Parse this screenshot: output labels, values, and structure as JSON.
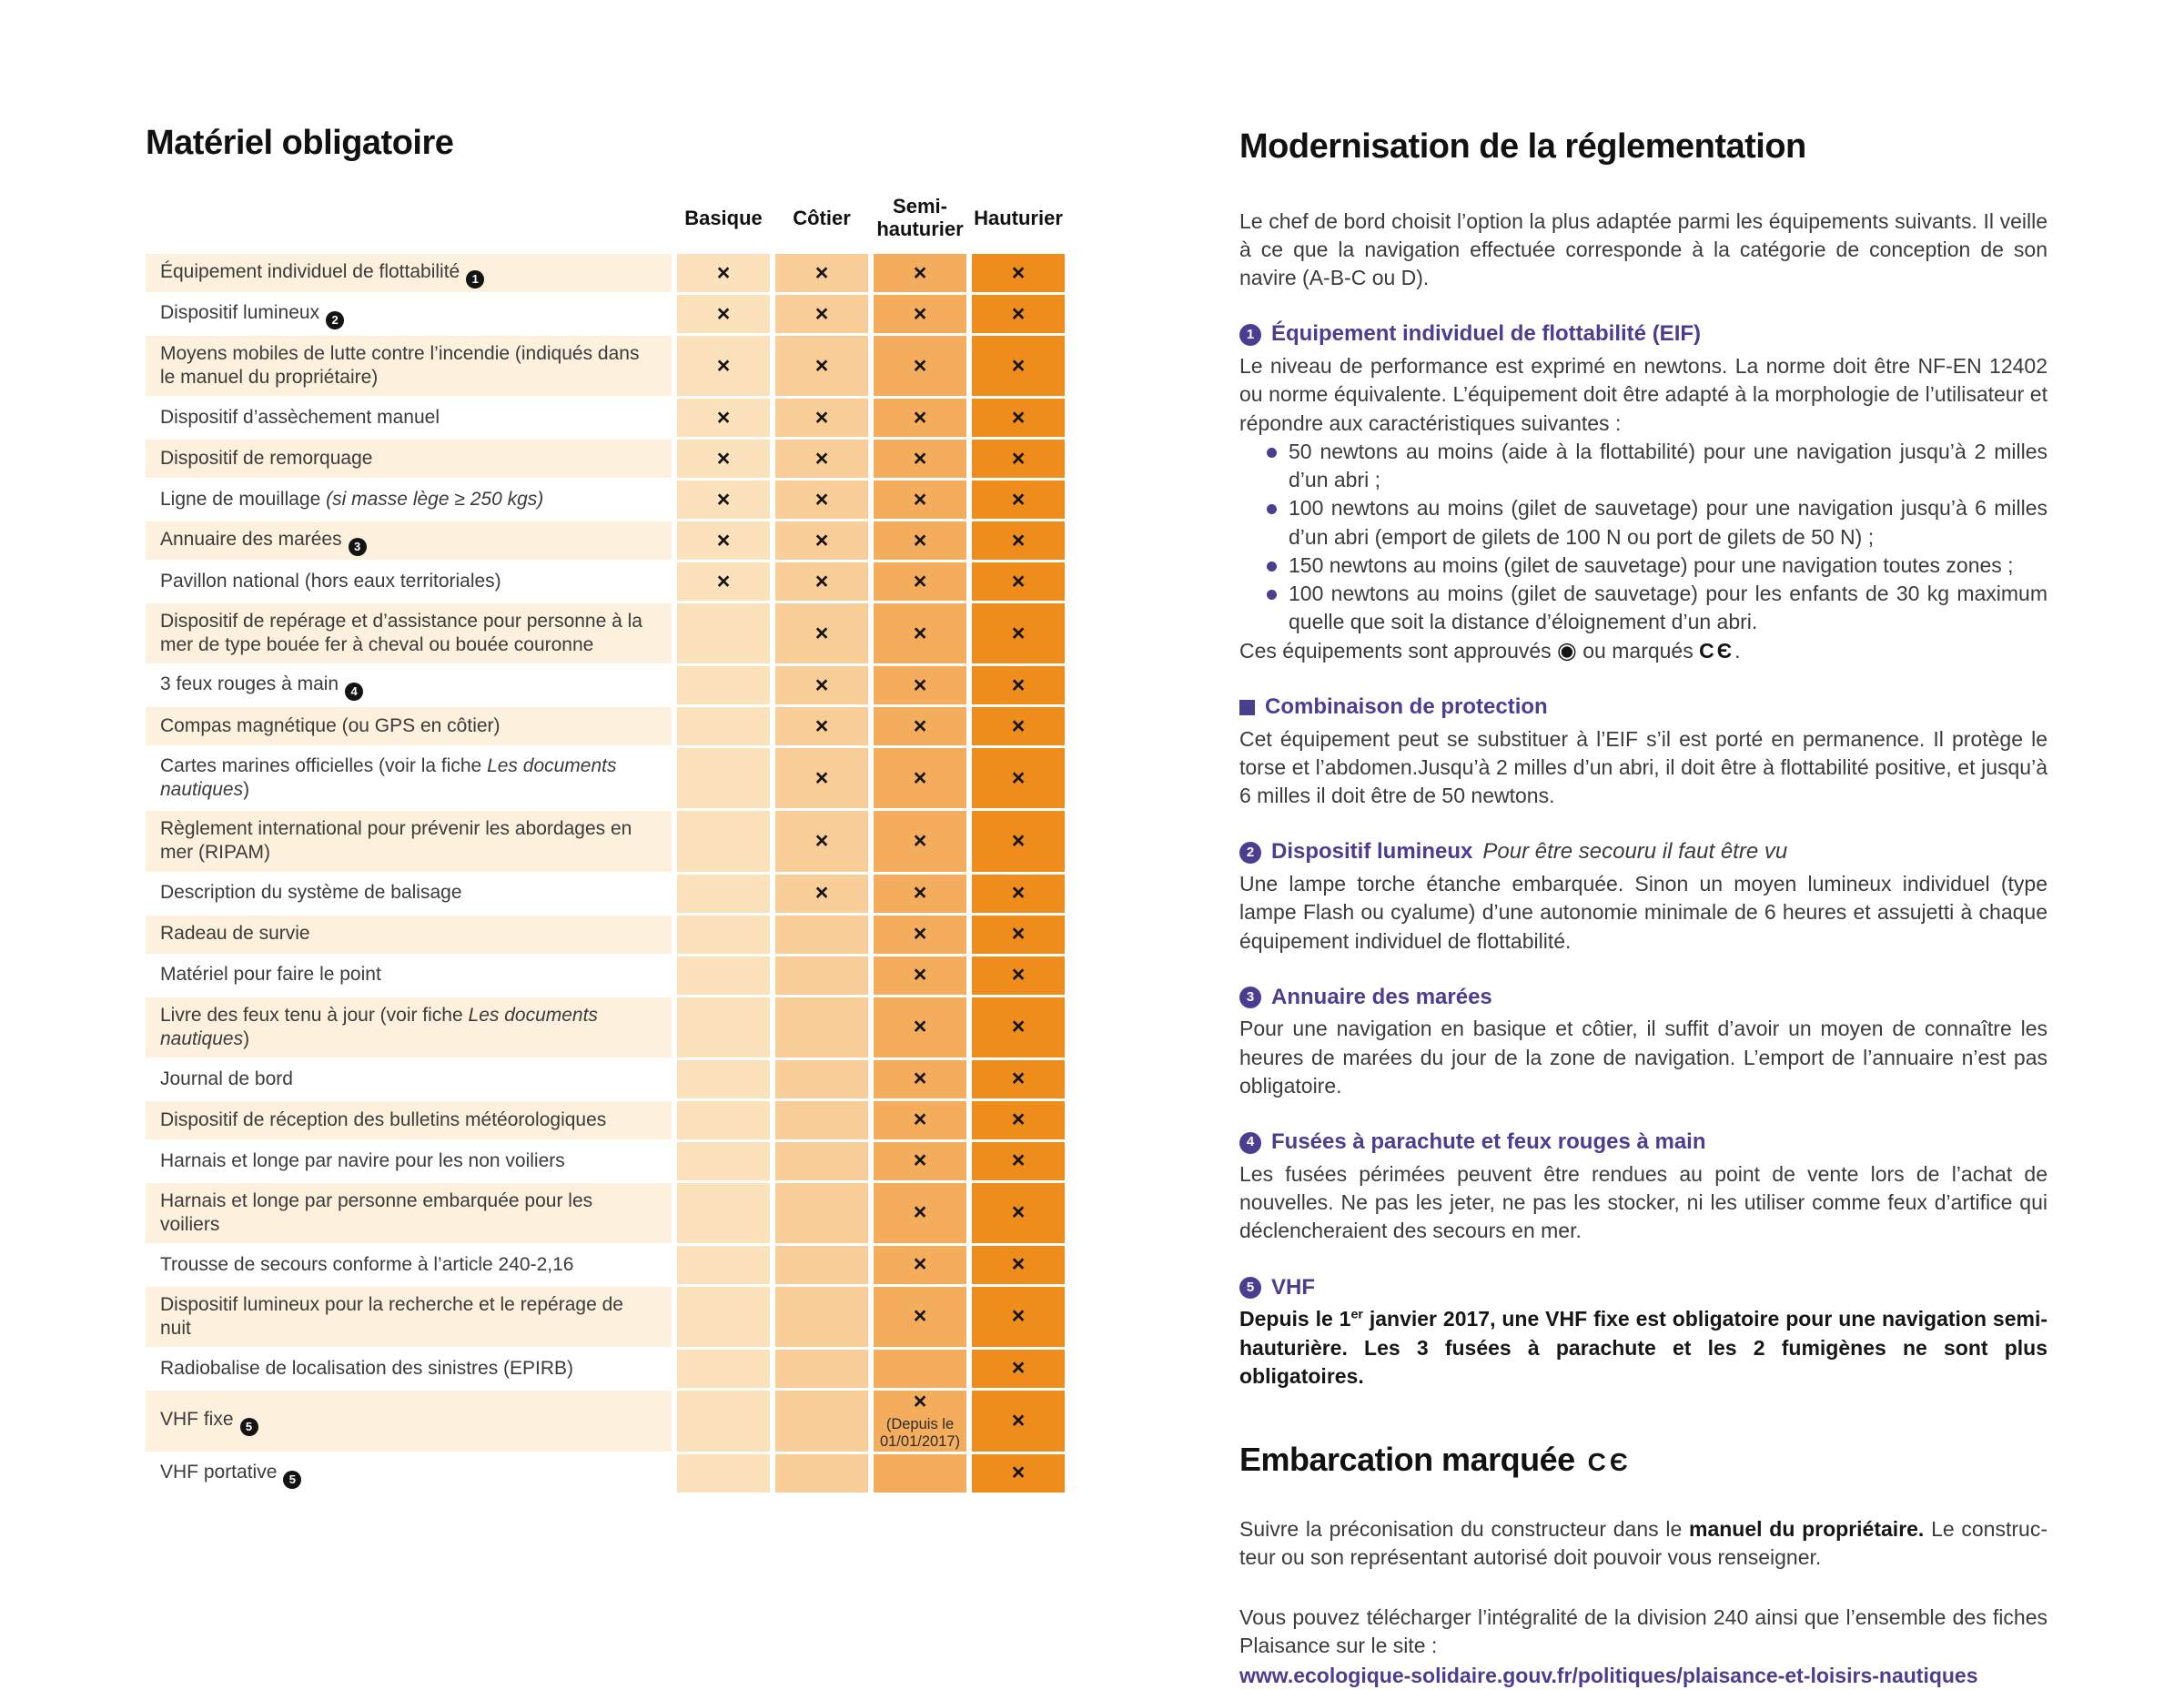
{
  "icons": {
    "wheel_mark": "◉",
    "ce_mark": "CЄ"
  },
  "colors": {
    "accent_purple": "#4a3e91",
    "col_basique": "#fbe2bd",
    "col_cotier": "#f9cd97",
    "col_semi": "#f4ad5d",
    "col_hauturier": "#ee8c1c",
    "row_shade": "#fdf0dc"
  },
  "left": {
    "title": "Matériel obligatoire",
    "table": {
      "columns": [
        "Basique",
        "Côtier",
        "Semi-\nhauturier",
        "Hauturier"
      ],
      "mark": "×",
      "rows": [
        {
          "segments": [
            {
              "t": "Équipement individuel de flottabilité",
              "i": false
            }
          ],
          "badge": "1",
          "marks": [
            1,
            1,
            1,
            1
          ]
        },
        {
          "segments": [
            {
              "t": "Dispositif lumineux",
              "i": false
            }
          ],
          "badge": "2",
          "marks": [
            1,
            1,
            1,
            1
          ]
        },
        {
          "segments": [
            {
              "t": "Moyens mobiles de lutte contre l’incendie (indiqués dans le manuel du propriétaire)",
              "i": false
            }
          ],
          "marks": [
            1,
            1,
            1,
            1
          ]
        },
        {
          "segments": [
            {
              "t": "Dispositif d’assèchement manuel",
              "i": false
            }
          ],
          "marks": [
            1,
            1,
            1,
            1
          ]
        },
        {
          "segments": [
            {
              "t": "Dispositif de remorquage",
              "i": false
            }
          ],
          "marks": [
            1,
            1,
            1,
            1
          ]
        },
        {
          "segments": [
            {
              "t": "Ligne de mouillage ",
              "i": false
            },
            {
              "t": "(si masse lège ≥ 250 kgs)",
              "i": true
            }
          ],
          "marks": [
            1,
            1,
            1,
            1
          ]
        },
        {
          "segments": [
            {
              "t": "Annuaire des marées",
              "i": false
            }
          ],
          "badge": "3",
          "marks": [
            1,
            1,
            1,
            1
          ]
        },
        {
          "segments": [
            {
              "t": "Pavillon national (hors eaux territoriales)",
              "i": false
            }
          ],
          "marks": [
            1,
            1,
            1,
            1
          ]
        },
        {
          "segments": [
            {
              "t": "Dispositif de repérage et d’assistance pour personne à la mer de type bouée fer à cheval ou bouée couronne",
              "i": false
            }
          ],
          "marks": [
            0,
            1,
            1,
            1
          ]
        },
        {
          "segments": [
            {
              "t": "3 feux rouges à main",
              "i": false
            }
          ],
          "badge": "4",
          "marks": [
            0,
            1,
            1,
            1
          ]
        },
        {
          "segments": [
            {
              "t": "Compas magnétique (ou GPS en côtier)",
              "i": false
            }
          ],
          "marks": [
            0,
            1,
            1,
            1
          ]
        },
        {
          "segments": [
            {
              "t": "Cartes marines officielles (voir la fiche ",
              "i": false
            },
            {
              "t": "Les documents nautiques",
              "i": true
            },
            {
              "t": ")",
              "i": false
            }
          ],
          "marks": [
            0,
            1,
            1,
            1
          ]
        },
        {
          "segments": [
            {
              "t": "Règlement international pour prévenir les abordages en mer (RIPAM)",
              "i": false
            }
          ],
          "marks": [
            0,
            1,
            1,
            1
          ]
        },
        {
          "segments": [
            {
              "t": "Description du système de balisage",
              "i": false
            }
          ],
          "marks": [
            0,
            1,
            1,
            1
          ]
        },
        {
          "segments": [
            {
              "t": "Radeau de survie",
              "i": false
            }
          ],
          "marks": [
            0,
            0,
            1,
            1
          ]
        },
        {
          "segments": [
            {
              "t": "Matériel pour faire le point",
              "i": false
            }
          ],
          "marks": [
            0,
            0,
            1,
            1
          ]
        },
        {
          "segments": [
            {
              "t": "Livre des feux tenu à jour (voir fiche ",
              "i": false
            },
            {
              "t": "Les documents nautiques",
              "i": true
            },
            {
              "t": ")",
              "i": false
            }
          ],
          "marks": [
            0,
            0,
            1,
            1
          ]
        },
        {
          "segments": [
            {
              "t": "Journal de bord",
              "i": false
            }
          ],
          "marks": [
            0,
            0,
            1,
            1
          ]
        },
        {
          "segments": [
            {
              "t": "Dispositif de réception des bulletins météorologiques",
              "i": false
            }
          ],
          "marks": [
            0,
            0,
            1,
            1
          ]
        },
        {
          "segments": [
            {
              "t": "Harnais et longe par navire pour les non voiliers",
              "i": false
            }
          ],
          "marks": [
            0,
            0,
            1,
            1
          ]
        },
        {
          "segments": [
            {
              "t": "Harnais et longe par personne embarquée pour les voiliers",
              "i": false
            }
          ],
          "marks": [
            0,
            0,
            1,
            1
          ]
        },
        {
          "segments": [
            {
              "t": "Trousse de secours conforme à l’article 240-2,16",
              "i": false
            }
          ],
          "marks": [
            0,
            0,
            1,
            1
          ]
        },
        {
          "segments": [
            {
              "t": "Dispositif lumineux pour la recherche et le repérage de nuit",
              "i": false
            }
          ],
          "marks": [
            0,
            0,
            1,
            1
          ]
        },
        {
          "segments": [
            {
              "t": "Radiobalise de localisation des sinistres (EPIRB)",
              "i": false
            }
          ],
          "marks": [
            0,
            0,
            0,
            1
          ]
        },
        {
          "segments": [
            {
              "t": "VHF fixe",
              "i": false
            }
          ],
          "badge": "5",
          "marks": [
            0,
            0,
            1,
            1
          ],
          "semi_note": "(Depuis le 01/01/2017)"
        },
        {
          "segments": [
            {
              "t": "VHF portative",
              "i": false
            }
          ],
          "badge": "5",
          "marks": [
            0,
            0,
            0,
            1
          ]
        }
      ]
    }
  },
  "right": {
    "title": "Modernisation de la réglementation",
    "intro": "Le chef de bord choisit l’option la plus adaptée parmi les équipements suivants. Il veille à ce que la navigation effectuée corresponde à la catégorie de conception de son navire (A-B-C ou D).",
    "sections": [
      {
        "badge": "1",
        "heading": "Équipement individuel de flottabilité (EIF)",
        "body": "Le niveau de performance est exprimé en newtons. La norme doit être NF-EN 12402 ou norme équivalente. L’équipement doit être adapté à la morphologie de l’utilisateur et répondre aux caractéristiques suivantes :",
        "bullets": [
          "50 newtons au moins (aide à la flottabilité) pour une navigation jusqu’à 2 milles d’un abri ;",
          "100 newtons au moins (gilet de sauvetage) pour une navigation jusqu’à 6 milles d’un abri (emport de gilets de 100 N ou port de gilets de 50 N) ;",
          "150 newtons au moins (gilet de sauvetage) pour une navigation toutes zones ;",
          "100 newtons au moins (gilet de sauvetage) pour les enfants de 30 kg maximum quelle que soit la distance d’éloignement d’un abri."
        ],
        "approved_prefix": "Ces équipements sont approuvés ",
        "approved_mid": " ou marqués ",
        "approved_suffix": "."
      },
      {
        "heading": "Combinaison de protection",
        "body": "Cet équipement peut se substituer à l’EIF s’il est porté en permanence.  Il protège le torse et l’abdomen.Jusqu’à 2 milles d’un abri, il doit être à flottabilité positive, et jusqu’à 6 milles il doit être de 50 newtons."
      },
      {
        "badge": "2",
        "heading": "Dispositif lumineux",
        "heading_note": "Pour être secouru il faut être vu",
        "body": "Une lampe torche étanche embarquée. Sinon un moyen lumineux individuel (type lampe Flash ou cyalume) d’une autonomie minimale de 6 heures et assujetti à chaque équipement individuel de flottabilité."
      },
      {
        "badge": "3",
        "heading": "Annuaire des marées",
        "body": "Pour une navigation en basique et côtier, il suffit d’avoir un moyen de connaître les heures de marées du jour de la zone de navigation. L’emport de l’annuaire n’est pas obligatoire."
      },
      {
        "badge": "4",
        "heading": "Fusées à parachute et feux rouges à main",
        "body": "Les fusées périmées peuvent être rendues au point de vente lors de l’achat de nouvelles. Ne pas les jeter, ne pas les stocker, ni les utiliser comme feux d’artifice qui déclencheraient des secours en mer."
      },
      {
        "badge": "5",
        "heading": "VHF",
        "body_prefix": "Depuis le 1",
        "body_sup": "er",
        "body_rest": " janvier 2017, une VHF fixe est obligatoire pour une navigation semi-hauturière. Les 3 fusées à parachute et les 2 fumigènes ne sont plus obligatoires."
      }
    ],
    "embarcation": {
      "title": "Embarcation marquée",
      "p1_before": "Suivre la préconisation du constructeur dans le ",
      "p1_bold": "manuel du propriétaire.",
      "p1_after": " Le construc­teur ou son représentant autorisé doit pouvoir vous renseigner.",
      "p2": "Vous pouvez télécharger l’intégralité de la division 240 ainsi que l’ensemble des fiches Plaisance sur le site :",
      "link": "www.ecologique-solidaire.gouv.fr/politiques/plaisance-et-loisirs-nautiques"
    }
  }
}
